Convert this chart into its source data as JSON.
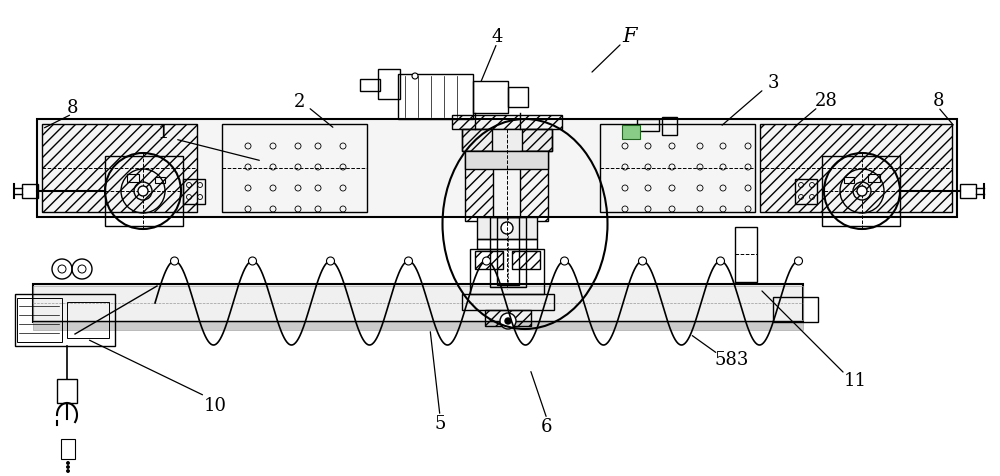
{
  "bg_color": "#ffffff",
  "lc": "#000000",
  "gray": "#aaaaaa",
  "figsize": [
    10.0,
    4.77
  ],
  "dpi": 100
}
